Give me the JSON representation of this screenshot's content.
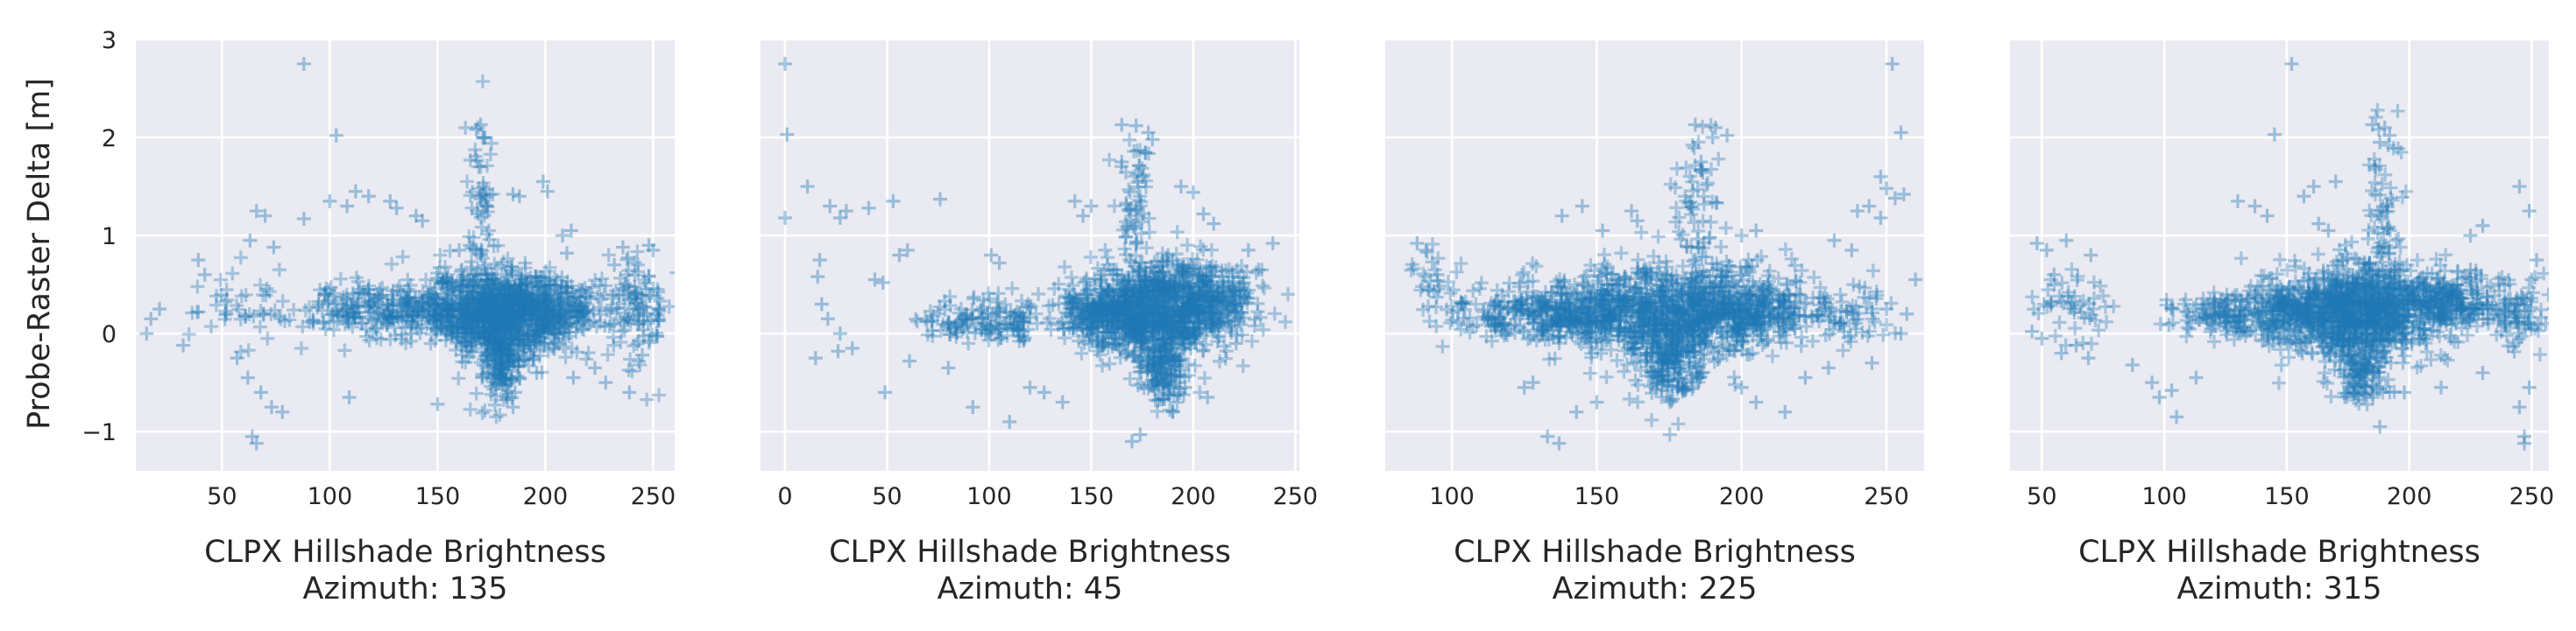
{
  "figure": {
    "ylabel": "Probe-Raster Delta [m]",
    "marker_color": "#1f77b4",
    "background_color": "#eaeaf2",
    "marker": "+",
    "grid": true,
    "shared_y": true
  },
  "chart_data": [
    {
      "type": "scatter",
      "xlabel": "CLPX Hillshade Brightness",
      "subtitle": "Azimuth: 135",
      "xticks": [
        50,
        100,
        150,
        200,
        250
      ],
      "xlim": [
        10,
        260
      ],
      "yticks": [
        -1,
        0,
        1,
        2,
        3
      ],
      "ylim": [
        -1.4,
        3.0
      ],
      "dense_clusters": [
        {
          "cx": 178,
          "cy": 0.2,
          "sx": 14,
          "sy": 0.22,
          "n": 900
        },
        {
          "cx": 205,
          "cy": 0.25,
          "sx": 12,
          "sy": 0.16,
          "n": 260
        },
        {
          "cx": 145,
          "cy": 0.25,
          "sx": 15,
          "sy": 0.14,
          "n": 220
        },
        {
          "cx": 112,
          "cy": 0.25,
          "sx": 13,
          "sy": 0.13,
          "n": 120
        },
        {
          "cx": 180,
          "cy": -0.35,
          "sx": 5,
          "sy": 0.18,
          "n": 140
        },
        {
          "cx": 243,
          "cy": 0.3,
          "sx": 7,
          "sy": 0.32,
          "n": 110
        },
        {
          "cx": 170,
          "cy": 1.3,
          "sx": 3,
          "sy": 0.45,
          "n": 60
        },
        {
          "cx": 60,
          "cy": 0.25,
          "sx": 16,
          "sy": 0.18,
          "n": 50
        }
      ],
      "points": [
        [
          88,
          2.75
        ],
        [
          103,
          2.02
        ],
        [
          170,
          2.13
        ],
        [
          168,
          2.08
        ],
        [
          172,
          2.0
        ],
        [
          199,
          1.55
        ],
        [
          201,
          1.45
        ],
        [
          185,
          1.42
        ],
        [
          188,
          1.4
        ],
        [
          100,
          1.35
        ],
        [
          108,
          1.3
        ],
        [
          112,
          1.45
        ],
        [
          118,
          1.4
        ],
        [
          128,
          1.35
        ],
        [
          131,
          1.28
        ],
        [
          140,
          1.2
        ],
        [
          143,
          1.15
        ],
        [
          88,
          1.17
        ],
        [
          66,
          1.25
        ],
        [
          70,
          1.2
        ],
        [
          63,
          0.95
        ],
        [
          74,
          0.88
        ],
        [
          39,
          0.75
        ],
        [
          42,
          0.6
        ],
        [
          21,
          0.25
        ],
        [
          17,
          0.15
        ],
        [
          15,
          0.0
        ],
        [
          32,
          -0.12
        ],
        [
          57,
          -0.25
        ],
        [
          62,
          -0.45
        ],
        [
          68,
          -0.6
        ],
        [
          73,
          -0.75
        ],
        [
          78,
          -0.8
        ],
        [
          64,
          -1.05
        ],
        [
          66,
          -1.12
        ],
        [
          150,
          -0.72
        ],
        [
          109,
          -0.65
        ],
        [
          223,
          -0.35
        ],
        [
          228,
          -0.5
        ],
        [
          239,
          -0.6
        ],
        [
          245,
          -0.22
        ],
        [
          196,
          -0.4
        ],
        [
          213,
          -0.45
        ],
        [
          185,
          -0.75
        ],
        [
          186,
          -0.6
        ],
        [
          208,
          1.0
        ],
        [
          212,
          1.05
        ],
        [
          248,
          0.9
        ],
        [
          250,
          0.85
        ],
        [
          210,
          0.82
        ],
        [
          232,
          0.7
        ],
        [
          236,
          0.88
        ],
        [
          160,
          0.85
        ],
        [
          165,
          0.9
        ]
      ]
    },
    {
      "type": "scatter",
      "xlabel": "CLPX Hillshade Brightness",
      "subtitle": "Azimuth: 45",
      "xticks": [
        0,
        50,
        100,
        150,
        200,
        250
      ],
      "xlim": [
        -12,
        252
      ],
      "yticks": [
        -1,
        0,
        1,
        2,
        3
      ],
      "ylim": [
        -1.4,
        3.0
      ],
      "dense_clusters": [
        {
          "cx": 182,
          "cy": 0.25,
          "sx": 17,
          "sy": 0.24,
          "n": 1000
        },
        {
          "cx": 153,
          "cy": 0.2,
          "sx": 10,
          "sy": 0.15,
          "n": 200
        },
        {
          "cx": 212,
          "cy": 0.3,
          "sx": 10,
          "sy": 0.2,
          "n": 180
        },
        {
          "cx": 185,
          "cy": -0.35,
          "sx": 6,
          "sy": 0.2,
          "n": 150
        },
        {
          "cx": 105,
          "cy": 0.15,
          "sx": 14,
          "sy": 0.12,
          "n": 110
        },
        {
          "cx": 172,
          "cy": 1.3,
          "sx": 4,
          "sy": 0.4,
          "n": 60
        },
        {
          "cx": 80,
          "cy": 0.1,
          "sx": 10,
          "sy": 0.12,
          "n": 40
        }
      ],
      "points": [
        [
          0,
          2.75
        ],
        [
          1,
          2.03
        ],
        [
          165,
          2.13
        ],
        [
          172,
          2.12
        ],
        [
          178,
          2.05
        ],
        [
          180,
          1.98
        ],
        [
          165,
          1.75
        ],
        [
          11,
          1.5
        ],
        [
          0,
          1.18
        ],
        [
          22,
          1.3
        ],
        [
          30,
          1.25
        ],
        [
          27,
          1.18
        ],
        [
          41,
          1.28
        ],
        [
          53,
          1.35
        ],
        [
          76,
          1.37
        ],
        [
          142,
          1.35
        ],
        [
          150,
          1.3
        ],
        [
          146,
          1.2
        ],
        [
          194,
          1.5
        ],
        [
          200,
          1.44
        ],
        [
          205,
          1.22
        ],
        [
          210,
          1.12
        ],
        [
          227,
          0.85
        ],
        [
          239,
          0.92
        ],
        [
          44,
          0.55
        ],
        [
          48,
          0.52
        ],
        [
          17,
          0.75
        ],
        [
          16,
          0.58
        ],
        [
          18,
          0.3
        ],
        [
          21,
          0.15
        ],
        [
          27,
          0.0
        ],
        [
          33,
          -0.15
        ],
        [
          26,
          -0.18
        ],
        [
          15,
          -0.25
        ],
        [
          49,
          -0.6
        ],
        [
          61,
          -0.28
        ],
        [
          80,
          -0.35
        ],
        [
          92,
          -0.75
        ],
        [
          110,
          -0.9
        ],
        [
          120,
          -0.55
        ],
        [
          127,
          -0.6
        ],
        [
          136,
          -0.7
        ],
        [
          170,
          -1.1
        ],
        [
          174,
          -1.03
        ],
        [
          190,
          -0.8
        ],
        [
          196,
          -0.55
        ],
        [
          207,
          -0.65
        ],
        [
          221,
          -0.1
        ],
        [
          232,
          0.65
        ],
        [
          56,
          0.8
        ],
        [
          60,
          0.85
        ],
        [
          101,
          0.8
        ],
        [
          105,
          0.72
        ]
      ]
    },
    {
      "type": "scatter",
      "xlabel": "CLPX Hillshade Brightness",
      "subtitle": "Azimuth: 225",
      "xticks": [
        100,
        150,
        200,
        250
      ],
      "xlim": [
        77,
        263
      ],
      "yticks": [
        -1,
        0,
        1,
        2,
        3
      ],
      "ylim": [
        -1.4,
        3.0
      ],
      "dense_clusters": [
        {
          "cx": 175,
          "cy": 0.2,
          "sx": 18,
          "sy": 0.24,
          "n": 1000
        },
        {
          "cx": 140,
          "cy": 0.2,
          "sx": 10,
          "sy": 0.16,
          "n": 260
        },
        {
          "cx": 205,
          "cy": 0.25,
          "sx": 10,
          "sy": 0.18,
          "n": 240
        },
        {
          "cx": 175,
          "cy": -0.35,
          "sx": 6,
          "sy": 0.2,
          "n": 150
        },
        {
          "cx": 115,
          "cy": 0.2,
          "sx": 9,
          "sy": 0.14,
          "n": 90
        },
        {
          "cx": 235,
          "cy": 0.2,
          "sx": 8,
          "sy": 0.14,
          "n": 70
        },
        {
          "cx": 185,
          "cy": 1.3,
          "sx": 4,
          "sy": 0.4,
          "n": 60
        },
        {
          "cx": 96,
          "cy": 0.45,
          "sx": 6,
          "sy": 0.2,
          "n": 35
        }
      ],
      "points": [
        [
          184,
          2.13
        ],
        [
          191,
          2.1
        ],
        [
          195,
          2.02
        ],
        [
          190,
          2.0
        ],
        [
          186,
          1.75
        ],
        [
          252,
          2.75
        ],
        [
          255,
          2.05
        ],
        [
          248,
          1.6
        ],
        [
          250,
          1.48
        ],
        [
          253,
          1.38
        ],
        [
          256,
          1.42
        ],
        [
          244,
          1.3
        ],
        [
          240,
          1.25
        ],
        [
          248,
          1.18
        ],
        [
          205,
          1.05
        ],
        [
          200,
          1.0
        ],
        [
          162,
          1.25
        ],
        [
          164,
          1.15
        ],
        [
          145,
          1.3
        ],
        [
          138,
          1.2
        ],
        [
          152,
          1.05
        ],
        [
          232,
          0.95
        ],
        [
          238,
          0.85
        ],
        [
          88,
          0.92
        ],
        [
          91,
          0.85
        ],
        [
          95,
          0.6
        ],
        [
          133,
          -1.05
        ],
        [
          137,
          -1.12
        ],
        [
          143,
          -0.8
        ],
        [
          150,
          -0.7
        ],
        [
          128,
          -0.5
        ],
        [
          125,
          -0.55
        ],
        [
          200,
          -0.55
        ],
        [
          205,
          -0.7
        ],
        [
          215,
          -0.8
        ],
        [
          222,
          -0.45
        ],
        [
          230,
          -0.35
        ],
        [
          245,
          -0.3
        ],
        [
          255,
          0.0
        ],
        [
          257,
          0.2
        ],
        [
          250,
          0.25
        ],
        [
          260,
          0.55
        ]
      ]
    },
    {
      "type": "scatter",
      "xlabel": "CLPX Hillshade Brightness",
      "subtitle": "Azimuth: 315",
      "xticks": [
        50,
        100,
        150,
        200,
        250
      ],
      "xlim": [
        37,
        257
      ],
      "yticks": [
        -1,
        0,
        1,
        2,
        3
      ],
      "ylim": [
        -1.4,
        3.0
      ],
      "dense_clusters": [
        {
          "cx": 180,
          "cy": 0.25,
          "sx": 17,
          "sy": 0.24,
          "n": 1000
        },
        {
          "cx": 150,
          "cy": 0.2,
          "sx": 12,
          "sy": 0.15,
          "n": 240
        },
        {
          "cx": 215,
          "cy": 0.3,
          "sx": 10,
          "sy": 0.16,
          "n": 220
        },
        {
          "cx": 122,
          "cy": 0.2,
          "sx": 10,
          "sy": 0.12,
          "n": 110
        },
        {
          "cx": 180,
          "cy": -0.35,
          "sx": 6,
          "sy": 0.2,
          "n": 150
        },
        {
          "cx": 245,
          "cy": 0.2,
          "sx": 6,
          "sy": 0.2,
          "n": 90
        },
        {
          "cx": 190,
          "cy": 1.3,
          "sx": 4,
          "sy": 0.4,
          "n": 60
        },
        {
          "cx": 62,
          "cy": 0.25,
          "sx": 10,
          "sy": 0.2,
          "n": 50
        }
      ],
      "points": [
        [
          152,
          2.75
        ],
        [
          145,
          2.03
        ],
        [
          185,
          2.13
        ],
        [
          190,
          2.1
        ],
        [
          192,
          2.02
        ],
        [
          188,
          1.95
        ],
        [
          186,
          1.7
        ],
        [
          161,
          1.5
        ],
        [
          170,
          1.55
        ],
        [
          157,
          1.4
        ],
        [
          137,
          1.3
        ],
        [
          142,
          1.2
        ],
        [
          130,
          1.35
        ],
        [
          163,
          1.12
        ],
        [
          167,
          1.05
        ],
        [
          245,
          1.5
        ],
        [
          249,
          1.25
        ],
        [
          230,
          1.1
        ],
        [
          225,
          1.0
        ],
        [
          48,
          0.92
        ],
        [
          52,
          0.85
        ],
        [
          60,
          0.95
        ],
        [
          70,
          0.8
        ],
        [
          55,
          0.6
        ],
        [
          46,
          0.02
        ],
        [
          50,
          -0.05
        ],
        [
          58,
          -0.2
        ],
        [
          64,
          -0.12
        ],
        [
          69,
          -0.25
        ],
        [
          87,
          -0.32
        ],
        [
          95,
          -0.5
        ],
        [
          103,
          -0.58
        ],
        [
          98,
          -0.65
        ],
        [
          113,
          -0.45
        ],
        [
          105,
          -0.85
        ],
        [
          245,
          -0.75
        ],
        [
          247,
          -1.05
        ],
        [
          247,
          -1.12
        ],
        [
          249,
          -0.55
        ],
        [
          230,
          -0.4
        ],
        [
          213,
          -0.55
        ],
        [
          198,
          -0.6
        ],
        [
          188,
          -0.95
        ],
        [
          252,
          0.75
        ],
        [
          250,
          0.55
        ],
        [
          225,
          0.65
        ]
      ]
    }
  ]
}
